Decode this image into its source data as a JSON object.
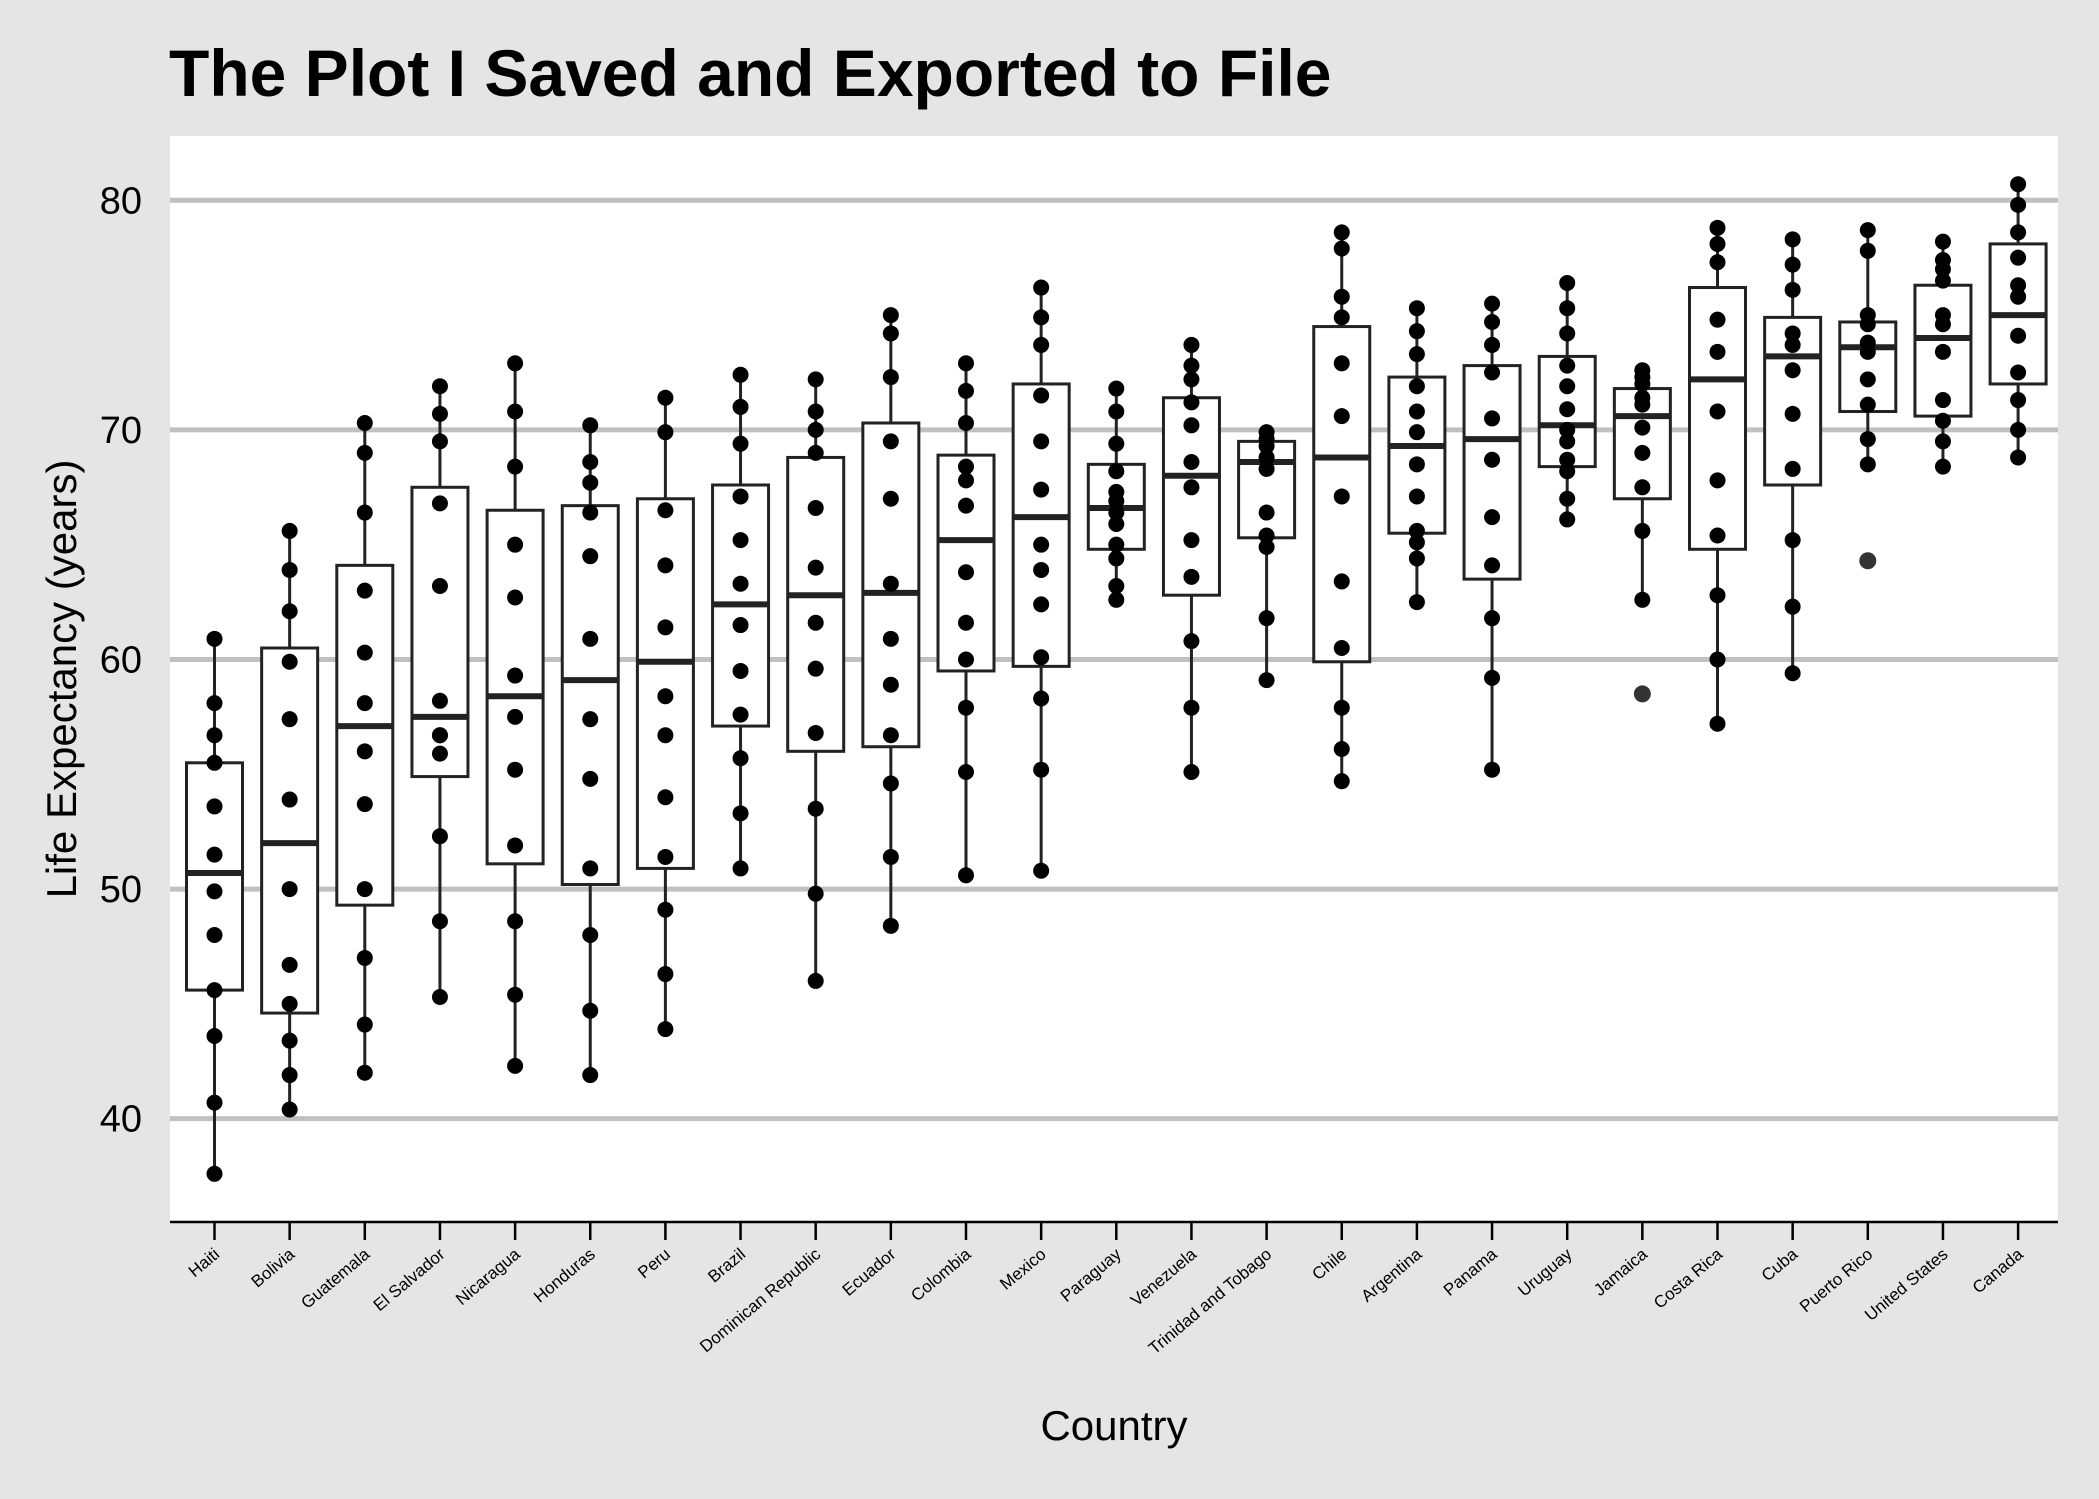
{
  "chart_data": {
    "type": "box",
    "title": "The Plot I Saved and Exported to File",
    "xlabel": "Country",
    "ylabel": "Life Expectancy (years)",
    "ylim": [
      35.5,
      82.8
    ],
    "yticks": [
      40,
      50,
      60,
      70,
      80
    ],
    "grid": "horizontal",
    "colors": {
      "background": "#e5e5e5",
      "panel": "#ffffff",
      "gridline": "#c0c0c0",
      "box_stroke": "#222222",
      "point": "#000000",
      "outlier": "#333333"
    },
    "categories": [
      "Haiti",
      "Bolivia",
      "Guatemala",
      "El Salvador",
      "Nicaragua",
      "Honduras",
      "Peru",
      "Brazil",
      "Dominican Republic",
      "Ecuador",
      "Colombia",
      "Mexico",
      "Paraguay",
      "Venezuela",
      "Trinidad and Tobago",
      "Chile",
      "Argentina",
      "Panama",
      "Uruguay",
      "Jamaica",
      "Costa Rica",
      "Cuba",
      "Puerto Rico",
      "United States",
      "Canada"
    ],
    "series": [
      {
        "category": "Haiti",
        "q1": 45.6,
        "median": 50.7,
        "q3": 55.5,
        "whisker_low": 37.6,
        "whisker_high": 60.9,
        "outliers": [],
        "points": [
          37.6,
          40.7,
          43.6,
          45.6,
          48.0,
          49.9,
          51.5,
          53.6,
          55.5,
          56.7,
          58.1,
          60.9
        ]
      },
      {
        "category": "Bolivia",
        "q1": 44.6,
        "median": 52.0,
        "q3": 60.5,
        "whisker_low": 40.4,
        "whisker_high": 65.6,
        "outliers": [],
        "points": [
          40.4,
          41.9,
          43.4,
          45.0,
          46.7,
          50.0,
          53.9,
          57.4,
          59.9,
          62.1,
          63.9,
          65.6
        ]
      },
      {
        "category": "Guatemala",
        "q1": 49.3,
        "median": 57.1,
        "q3": 64.1,
        "whisker_low": 42.0,
        "whisker_high": 70.3,
        "outliers": [],
        "points": [
          42.0,
          44.1,
          47.0,
          50.0,
          53.7,
          56.0,
          58.1,
          60.3,
          63.0,
          66.4,
          69.0,
          70.3
        ]
      },
      {
        "category": "El Salvador",
        "q1": 54.9,
        "median": 57.5,
        "q3": 67.5,
        "whisker_low": 45.3,
        "whisker_high": 71.9,
        "outliers": [],
        "points": [
          45.3,
          48.6,
          52.3,
          55.9,
          56.7,
          58.2,
          56.7,
          63.2,
          66.8,
          69.5,
          70.7,
          71.9
        ]
      },
      {
        "category": "Nicaragua",
        "q1": 51.1,
        "median": 58.4,
        "q3": 66.5,
        "whisker_low": 42.3,
        "whisker_high": 72.9,
        "outliers": [],
        "points": [
          42.3,
          45.4,
          48.6,
          51.9,
          55.2,
          57.5,
          59.3,
          62.7,
          65.0,
          68.4,
          70.8,
          72.9
        ]
      },
      {
        "category": "Honduras",
        "q1": 50.2,
        "median": 59.1,
        "q3": 66.7,
        "whisker_low": 41.9,
        "whisker_high": 70.2,
        "outliers": [],
        "points": [
          41.9,
          44.7,
          48.0,
          50.9,
          54.8,
          57.4,
          60.9,
          64.5,
          66.4,
          67.7,
          68.6,
          70.2
        ]
      },
      {
        "category": "Peru",
        "q1": 50.9,
        "median": 59.9,
        "q3": 67.0,
        "whisker_low": 43.9,
        "whisker_high": 71.4,
        "outliers": [],
        "points": [
          43.9,
          46.3,
          49.1,
          51.4,
          54.0,
          56.7,
          58.4,
          61.4,
          64.1,
          66.5,
          69.9,
          71.4
        ]
      },
      {
        "category": "Brazil",
        "q1": 57.1,
        "median": 62.4,
        "q3": 67.6,
        "whisker_low": 50.9,
        "whisker_high": 72.4,
        "outliers": [],
        "points": [
          50.9,
          53.3,
          55.7,
          57.6,
          59.5,
          61.5,
          63.3,
          65.2,
          67.1,
          69.4,
          71.0,
          72.4
        ]
      },
      {
        "category": "Dominican Republic",
        "q1": 56.0,
        "median": 62.8,
        "q3": 68.8,
        "whisker_low": 46.0,
        "whisker_high": 72.2,
        "outliers": [],
        "points": [
          46.0,
          49.8,
          53.5,
          56.8,
          59.6,
          61.6,
          64.0,
          66.6,
          69.0,
          70.0,
          70.8,
          72.2
        ]
      },
      {
        "category": "Ecuador",
        "q1": 56.2,
        "median": 62.9,
        "q3": 70.3,
        "whisker_low": 48.4,
        "whisker_high": 75.0,
        "outliers": [],
        "points": [
          48.4,
          51.4,
          54.6,
          56.7,
          58.9,
          60.9,
          63.3,
          67.0,
          69.5,
          72.3,
          74.2,
          75.0
        ]
      },
      {
        "category": "Colombia",
        "q1": 59.5,
        "median": 65.2,
        "q3": 68.9,
        "whisker_low": 50.6,
        "whisker_high": 72.9,
        "outliers": [],
        "points": [
          50.6,
          55.1,
          57.9,
          60.0,
          61.6,
          63.8,
          66.7,
          67.8,
          68.4,
          70.3,
          71.7,
          72.9
        ]
      },
      {
        "category": "Mexico",
        "q1": 59.7,
        "median": 66.2,
        "q3": 72.0,
        "whisker_low": 50.8,
        "whisker_high": 76.2,
        "outliers": [],
        "points": [
          50.8,
          55.2,
          58.3,
          60.1,
          62.4,
          63.9,
          65.0,
          67.4,
          69.5,
          71.5,
          73.7,
          74.9,
          76.2
        ]
      },
      {
        "category": "Paraguay",
        "q1": 64.8,
        "median": 66.6,
        "q3": 68.5,
        "whisker_low": 62.6,
        "whisker_high": 71.8,
        "outliers": [],
        "points": [
          62.6,
          63.2,
          64.4,
          65.0,
          65.9,
          66.4,
          66.9,
          67.3,
          68.2,
          69.4,
          70.8,
          71.8
        ]
      },
      {
        "category": "Venezuela",
        "q1": 62.8,
        "median": 68.0,
        "q3": 71.4,
        "whisker_low": 55.1,
        "whisker_high": 73.7,
        "outliers": [],
        "points": [
          55.1,
          57.9,
          60.8,
          63.6,
          65.2,
          67.5,
          68.6,
          70.2,
          71.2,
          72.2,
          72.8,
          73.7
        ]
      },
      {
        "category": "Trinidad and Tobago",
        "q1": 65.3,
        "median": 68.6,
        "q3": 69.5,
        "whisker_low": 59.1,
        "whisker_high": 69.9,
        "outliers": [],
        "points": [
          59.1,
          61.8,
          64.9,
          65.4,
          66.4,
          68.3,
          68.8,
          69.3,
          69.6,
          69.9
        ]
      },
      {
        "category": "Chile",
        "q1": 59.9,
        "median": 68.8,
        "q3": 74.5,
        "whisker_low": 54.7,
        "whisker_high": 78.6,
        "outliers": [],
        "points": [
          54.7,
          56.1,
          57.9,
          60.5,
          63.4,
          67.1,
          70.6,
          72.9,
          74.9,
          75.8,
          77.9,
          78.6
        ]
      },
      {
        "category": "Argentina",
        "q1": 65.5,
        "median": 69.3,
        "q3": 72.3,
        "whisker_low": 62.5,
        "whisker_high": 75.3,
        "outliers": [],
        "points": [
          62.5,
          64.4,
          65.1,
          65.6,
          67.1,
          68.5,
          69.9,
          70.8,
          71.9,
          73.3,
          74.3,
          75.3
        ]
      },
      {
        "category": "Panama",
        "q1": 63.5,
        "median": 69.6,
        "q3": 72.8,
        "whisker_low": 55.2,
        "whisker_high": 75.5,
        "outliers": [],
        "points": [
          55.2,
          59.2,
          61.8,
          64.1,
          66.2,
          68.7,
          70.5,
          72.5,
          73.7,
          74.7,
          75.5
        ]
      },
      {
        "category": "Uruguay",
        "q1": 68.4,
        "median": 70.2,
        "q3": 73.2,
        "whisker_low": 66.1,
        "whisker_high": 76.4,
        "outliers": [],
        "points": [
          66.1,
          67.0,
          68.2,
          68.7,
          69.5,
          70.0,
          70.9,
          71.9,
          72.8,
          74.2,
          75.3,
          76.4
        ]
      },
      {
        "category": "Jamaica",
        "q1": 67.0,
        "median": 70.6,
        "q3": 71.8,
        "whisker_low": 62.6,
        "whisker_high": 72.6,
        "outliers": [
          58.5
        ],
        "points": [
          62.6,
          65.6,
          67.5,
          69.0,
          70.1,
          71.1,
          71.4,
          72.3,
          72.0,
          72.6
        ]
      },
      {
        "category": "Costa Rica",
        "q1": 64.8,
        "median": 72.2,
        "q3": 76.2,
        "whisker_low": 57.2,
        "whisker_high": 78.8,
        "outliers": [],
        "points": [
          57.2,
          60.0,
          62.8,
          65.4,
          67.8,
          70.8,
          73.4,
          74.8,
          77.3,
          78.1,
          78.8
        ]
      },
      {
        "category": "Cuba",
        "q1": 67.6,
        "median": 73.2,
        "q3": 74.9,
        "whisker_low": 59.4,
        "whisker_high": 78.3,
        "outliers": [],
        "points": [
          59.4,
          62.3,
          65.2,
          68.3,
          70.7,
          72.6,
          73.7,
          74.2,
          76.1,
          77.2,
          78.3
        ]
      },
      {
        "category": "Puerto Rico",
        "q1": 70.8,
        "median": 73.6,
        "q3": 74.7,
        "whisker_low": 68.5,
        "whisker_high": 78.7,
        "outliers": [
          64.3
        ],
        "points": [
          68.5,
          69.6,
          71.1,
          72.2,
          73.4,
          73.8,
          74.6,
          75.0,
          77.8,
          78.7
        ]
      },
      {
        "category": "United States",
        "q1": 70.6,
        "median": 74.0,
        "q3": 76.3,
        "whisker_low": 68.4,
        "whisker_high": 78.2,
        "outliers": [],
        "points": [
          68.4,
          69.5,
          70.4,
          71.3,
          73.4,
          74.6,
          75.0,
          76.5,
          77.0,
          77.4,
          78.2
        ]
      },
      {
        "category": "Canada",
        "q1": 72.0,
        "median": 75.0,
        "q3": 78.1,
        "whisker_low": 68.8,
        "whisker_high": 80.7,
        "outliers": [],
        "points": [
          68.8,
          70.0,
          71.3,
          72.5,
          74.1,
          75.8,
          76.3,
          77.5,
          78.6,
          79.8,
          80.7
        ]
      }
    ]
  }
}
